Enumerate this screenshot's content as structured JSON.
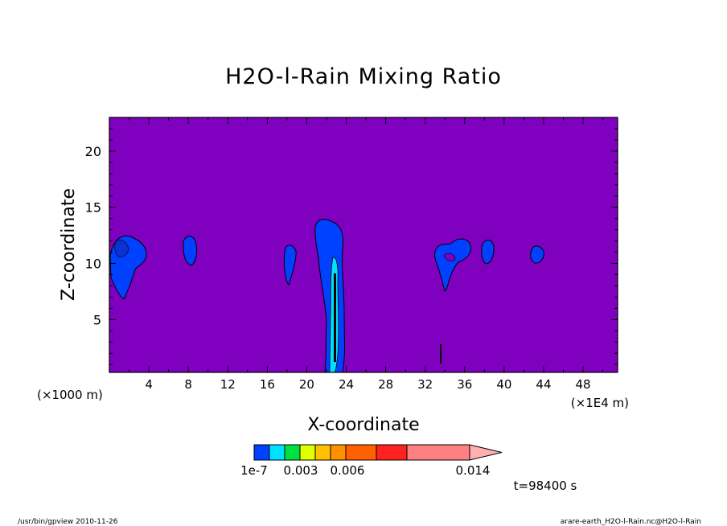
{
  "chart_data": {
    "type": "heatmap",
    "title": "H2O-l-Rain Mixing Ratio",
    "xlabel": "X-coordinate",
    "ylabel": "Z-coordinate",
    "x_unit_left": "(×1000 m)",
    "x_unit_right": "(×1E4 m)",
    "xlim": [
      0,
      51.5
    ],
    "ylim": [
      0.3,
      23
    ],
    "x_ticks": [
      4,
      8,
      12,
      16,
      20,
      24,
      28,
      32,
      36,
      40,
      44,
      48
    ],
    "y_ticks": [
      5,
      10,
      15,
      20
    ],
    "background_color": "#7f00bf",
    "colorbar": {
      "colors": [
        "#0040ff",
        "#00e0ff",
        "#00e040",
        "#e0ff00",
        "#ffc000",
        "#ff9000",
        "#ff6000",
        "#ff2020",
        "#ff8080",
        "#ffb0b0"
      ],
      "tick_labels": [
        "1e-7",
        "0.003",
        "0.006",
        "0.014"
      ]
    },
    "time_label": "t=98400 s",
    "features": [
      {
        "name": "cell-x1",
        "x": 1.2,
        "z": 10.0,
        "max_class": "blue"
      },
      {
        "name": "cell-x8",
        "x": 8.0,
        "z": 10.8,
        "max_class": "blue"
      },
      {
        "name": "cell-x18",
        "x": 18.0,
        "z": 10.0,
        "max_class": "blue"
      },
      {
        "name": "column-x22",
        "x": 22.0,
        "z": 6.5,
        "max_class": "cyan"
      },
      {
        "name": "cell-x34",
        "x": 34.5,
        "z": 10.0,
        "max_class": "blue"
      },
      {
        "name": "cell-x38",
        "x": 38.0,
        "z": 11.0,
        "max_class": "blue"
      },
      {
        "name": "cell-x43",
        "x": 43.0,
        "z": 10.5,
        "max_class": "blue"
      }
    ]
  },
  "footer": {
    "left": "/usr/bin/gpview   2010-11-26",
    "right": "arare-earth_H2O-l-Rain.nc@H2O-l-Rain"
  }
}
